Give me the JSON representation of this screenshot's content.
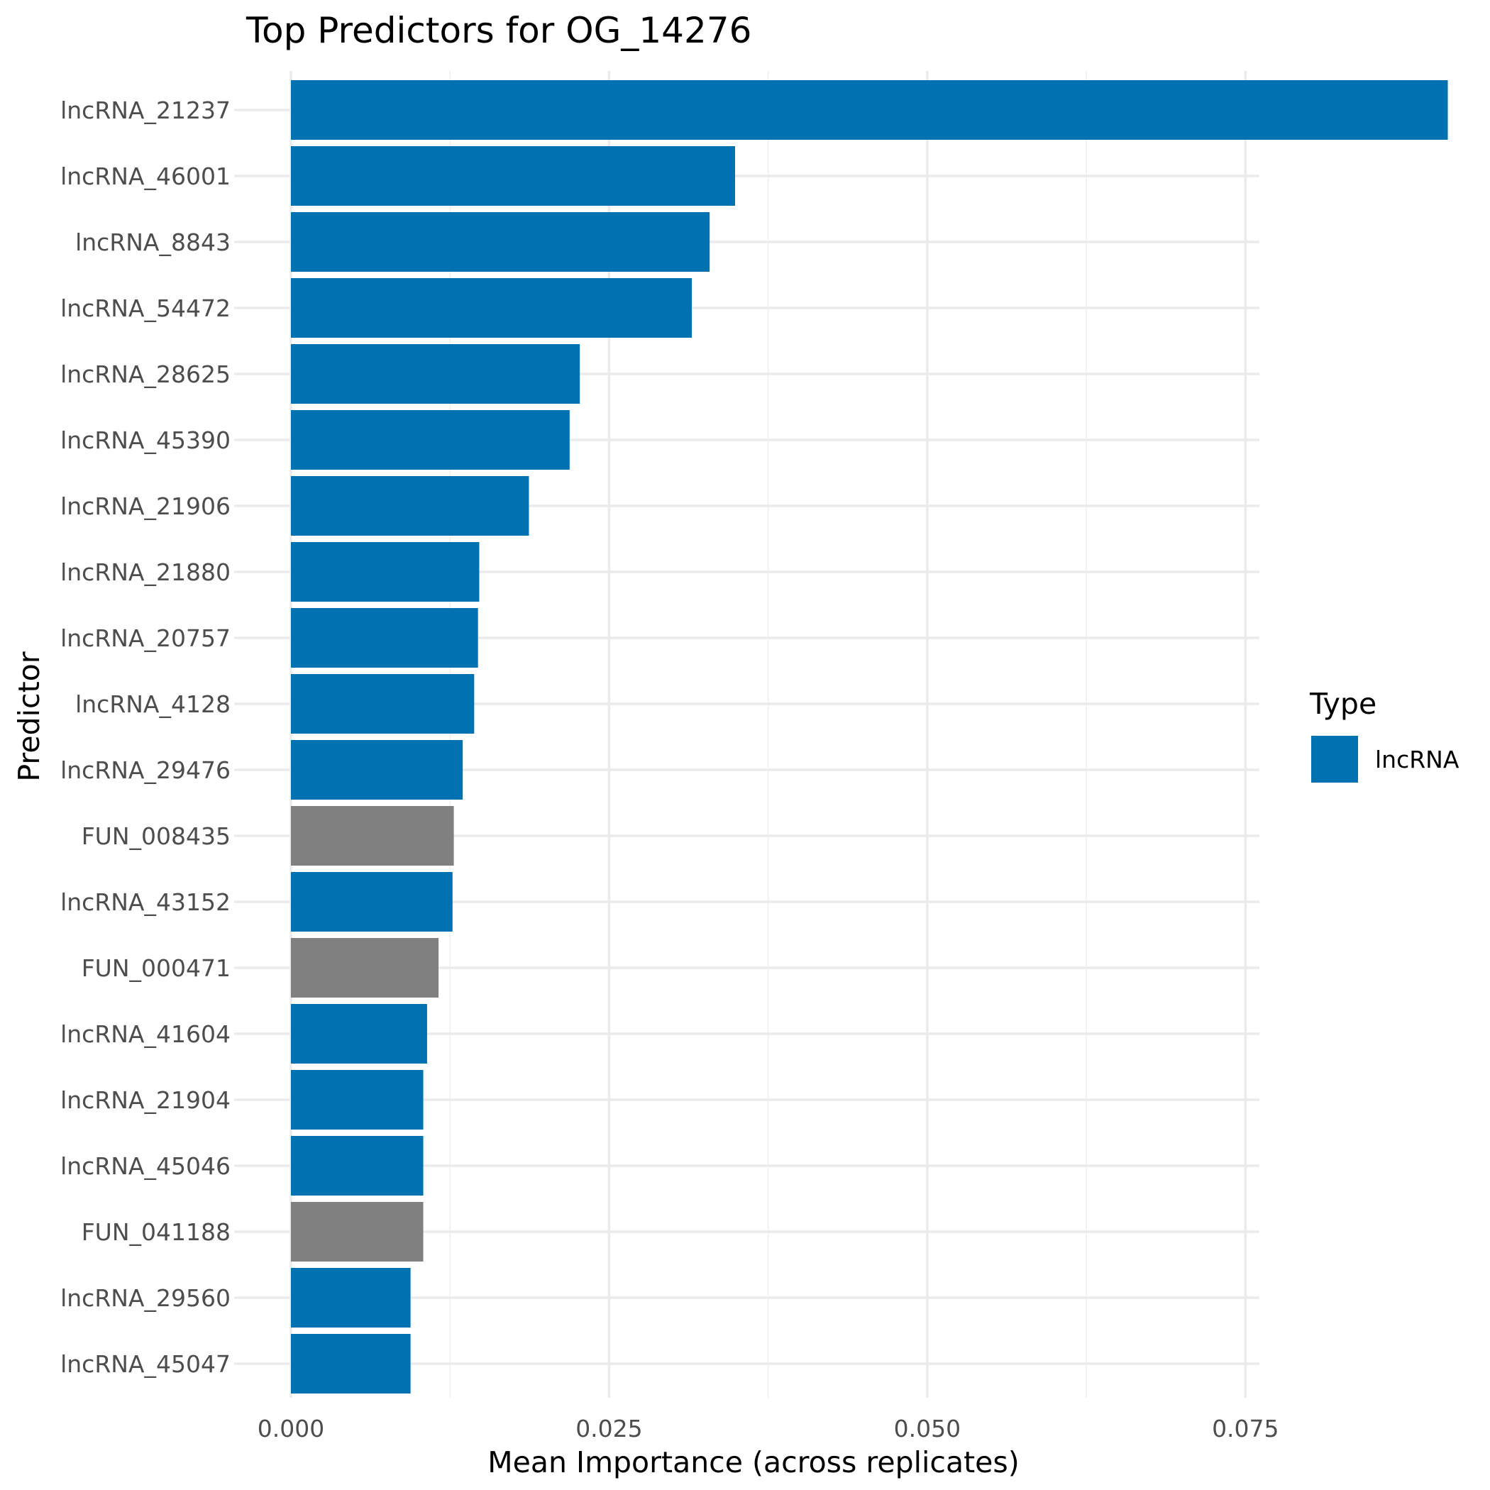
{
  "chart_data": {
    "type": "bar",
    "orientation": "horizontal",
    "title": "Top Predictors for OG_14276",
    "xlabel": "Mean Importance (across replicates)",
    "ylabel": "Predictor",
    "xlim": [
      0,
      0.095
    ],
    "x_ticks": [
      "0.000",
      "0.025",
      "0.050",
      "0.075"
    ],
    "x_tick_values": [
      0,
      0.025,
      0.05,
      0.075
    ],
    "categories": [
      "lncRNA_21237",
      "lncRNA_46001",
      "lncRNA_8843",
      "lncRNA_54472",
      "lncRNA_28625",
      "lncRNA_45390",
      "lncRNA_21906",
      "lncRNA_21880",
      "lncRNA_20757",
      "lncRNA_4128",
      "lncRNA_29476",
      "FUN_008435",
      "lncRNA_43152",
      "FUN_000471",
      "lncRNA_41604",
      "lncRNA_21904",
      "lncRNA_45046",
      "FUN_041188",
      "lncRNA_29560",
      "lncRNA_45047"
    ],
    "values": [
      0.0909,
      0.0349,
      0.0329,
      0.0315,
      0.0227,
      0.0219,
      0.0187,
      0.0148,
      0.0147,
      0.0144,
      0.0135,
      0.0128,
      0.0127,
      0.0116,
      0.0107,
      0.0104,
      0.0104,
      0.0104,
      0.0094,
      0.0094
    ],
    "types": [
      "lncRNA",
      "lncRNA",
      "lncRNA",
      "lncRNA",
      "lncRNA",
      "lncRNA",
      "lncRNA",
      "lncRNA",
      "lncRNA",
      "lncRNA",
      "lncRNA",
      "FUN",
      "lncRNA",
      "FUN",
      "lncRNA",
      "lncRNA",
      "lncRNA",
      "FUN",
      "lncRNA",
      "lncRNA"
    ],
    "type_colors": {
      "lncRNA": "#0072b2",
      "FUN": "#808080"
    },
    "legend": {
      "title": "Type",
      "position": "right",
      "entries": [
        {
          "label": "lncRNA",
          "color": "#0072b2"
        }
      ]
    },
    "grid": true
  }
}
